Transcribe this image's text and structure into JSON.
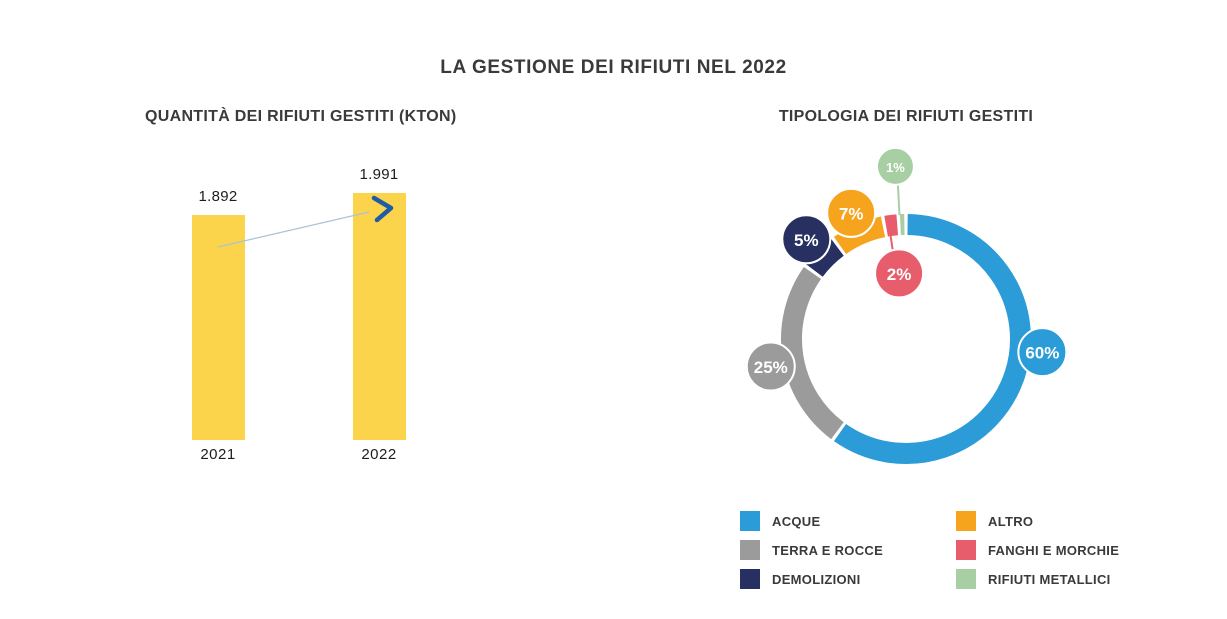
{
  "page": {
    "title": "LA GESTIONE DEI RIFIUTI NEL 2022"
  },
  "chart_data": [
    {
      "type": "bar",
      "title": "QUANTITÀ DEI RIFIUTI GESTITI (KTON)",
      "categories": [
        "2021",
        "2022"
      ],
      "values": [
        1892,
        1991
      ],
      "value_labels": [
        "1.892",
        "1.991"
      ],
      "unit": "kton",
      "bar_color": "#FBD44C",
      "annotation": "upward trend arrow from 2021 bar to 2022 bar",
      "arrow": {
        "line_color": "#A9C3D9",
        "head_color": "#1E5CA6"
      },
      "grid": false,
      "ylim": [
        0,
        2100
      ]
    },
    {
      "type": "pie",
      "subtype": "donut",
      "title": "TIPOLOGIA DEI RIFIUTI GESTITI",
      "unit": "%",
      "segments": [
        {
          "label": "ACQUE",
          "value": 60,
          "pct_label": "60%",
          "color": "#2B9CD8"
        },
        {
          "label": "TERRA E ROCCE",
          "value": 25,
          "pct_label": "25%",
          "color": "#9B9B9B"
        },
        {
          "label": "DEMOLIZIONI",
          "value": 5,
          "pct_label": "5%",
          "color": "#273061"
        },
        {
          "label": "ALTRO",
          "value": 7,
          "pct_label": "7%",
          "color": "#F6A41E"
        },
        {
          "label": "FANGHI E MORCHIE",
          "value": 2,
          "pct_label": "2%",
          "color": "#E75D6B"
        },
        {
          "label": "RIFIUTI METALLICI",
          "value": 1,
          "pct_label": "1%",
          "color": "#A8CFA3"
        }
      ],
      "legend_position": "bottom",
      "start_angle_deg": 0,
      "direction": "clockwise"
    }
  ]
}
